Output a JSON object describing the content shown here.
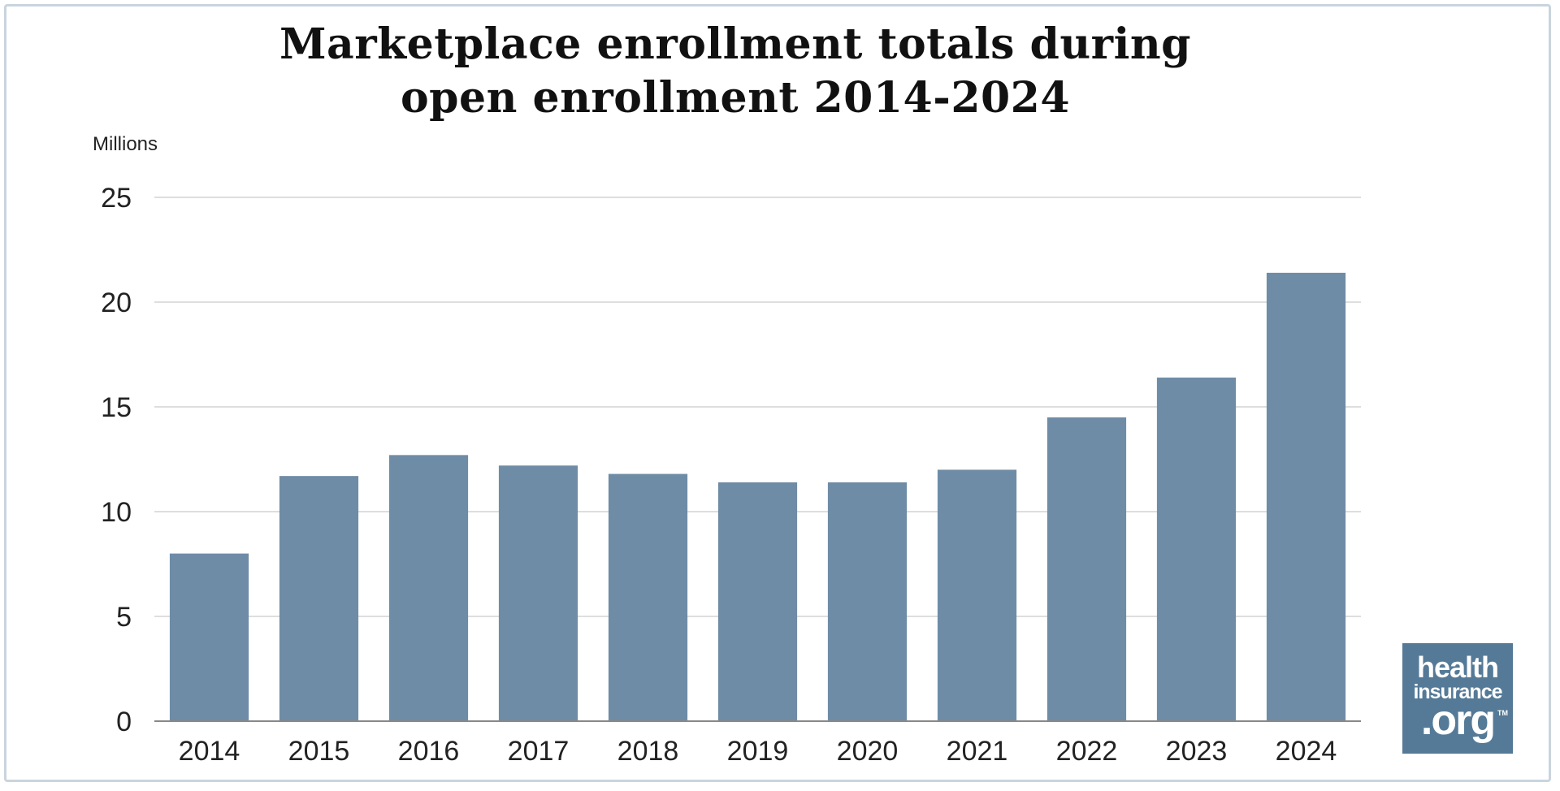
{
  "title_line1": "Marketplace enrollment totals during",
  "title_line2": "open enrollment 2014-2024",
  "unit_label": "Millions",
  "logo": {
    "line1": "health",
    "line2": "insurance",
    "line3": ".org",
    "tm": "TM"
  },
  "colors": {
    "bar": "#6f8ca6",
    "grid": "#d4d4d4",
    "axis": "#888888",
    "text": "#222222",
    "logo_bg": "#557a97"
  },
  "chart_data": {
    "type": "bar",
    "categories": [
      "2014",
      "2015",
      "2016",
      "2017",
      "2018",
      "2019",
      "2020",
      "2021",
      "2022",
      "2023",
      "2024"
    ],
    "values": [
      8.0,
      11.7,
      12.7,
      12.2,
      11.8,
      11.4,
      11.4,
      12.0,
      14.5,
      16.4,
      21.4
    ],
    "ylim": [
      0,
      25
    ],
    "yticks": [
      0,
      5,
      10,
      15,
      20,
      25
    ],
    "grid": true,
    "title": "Marketplace enrollment totals during open enrollment 2014-2024",
    "ylabel": "Millions",
    "xlabel": ""
  }
}
